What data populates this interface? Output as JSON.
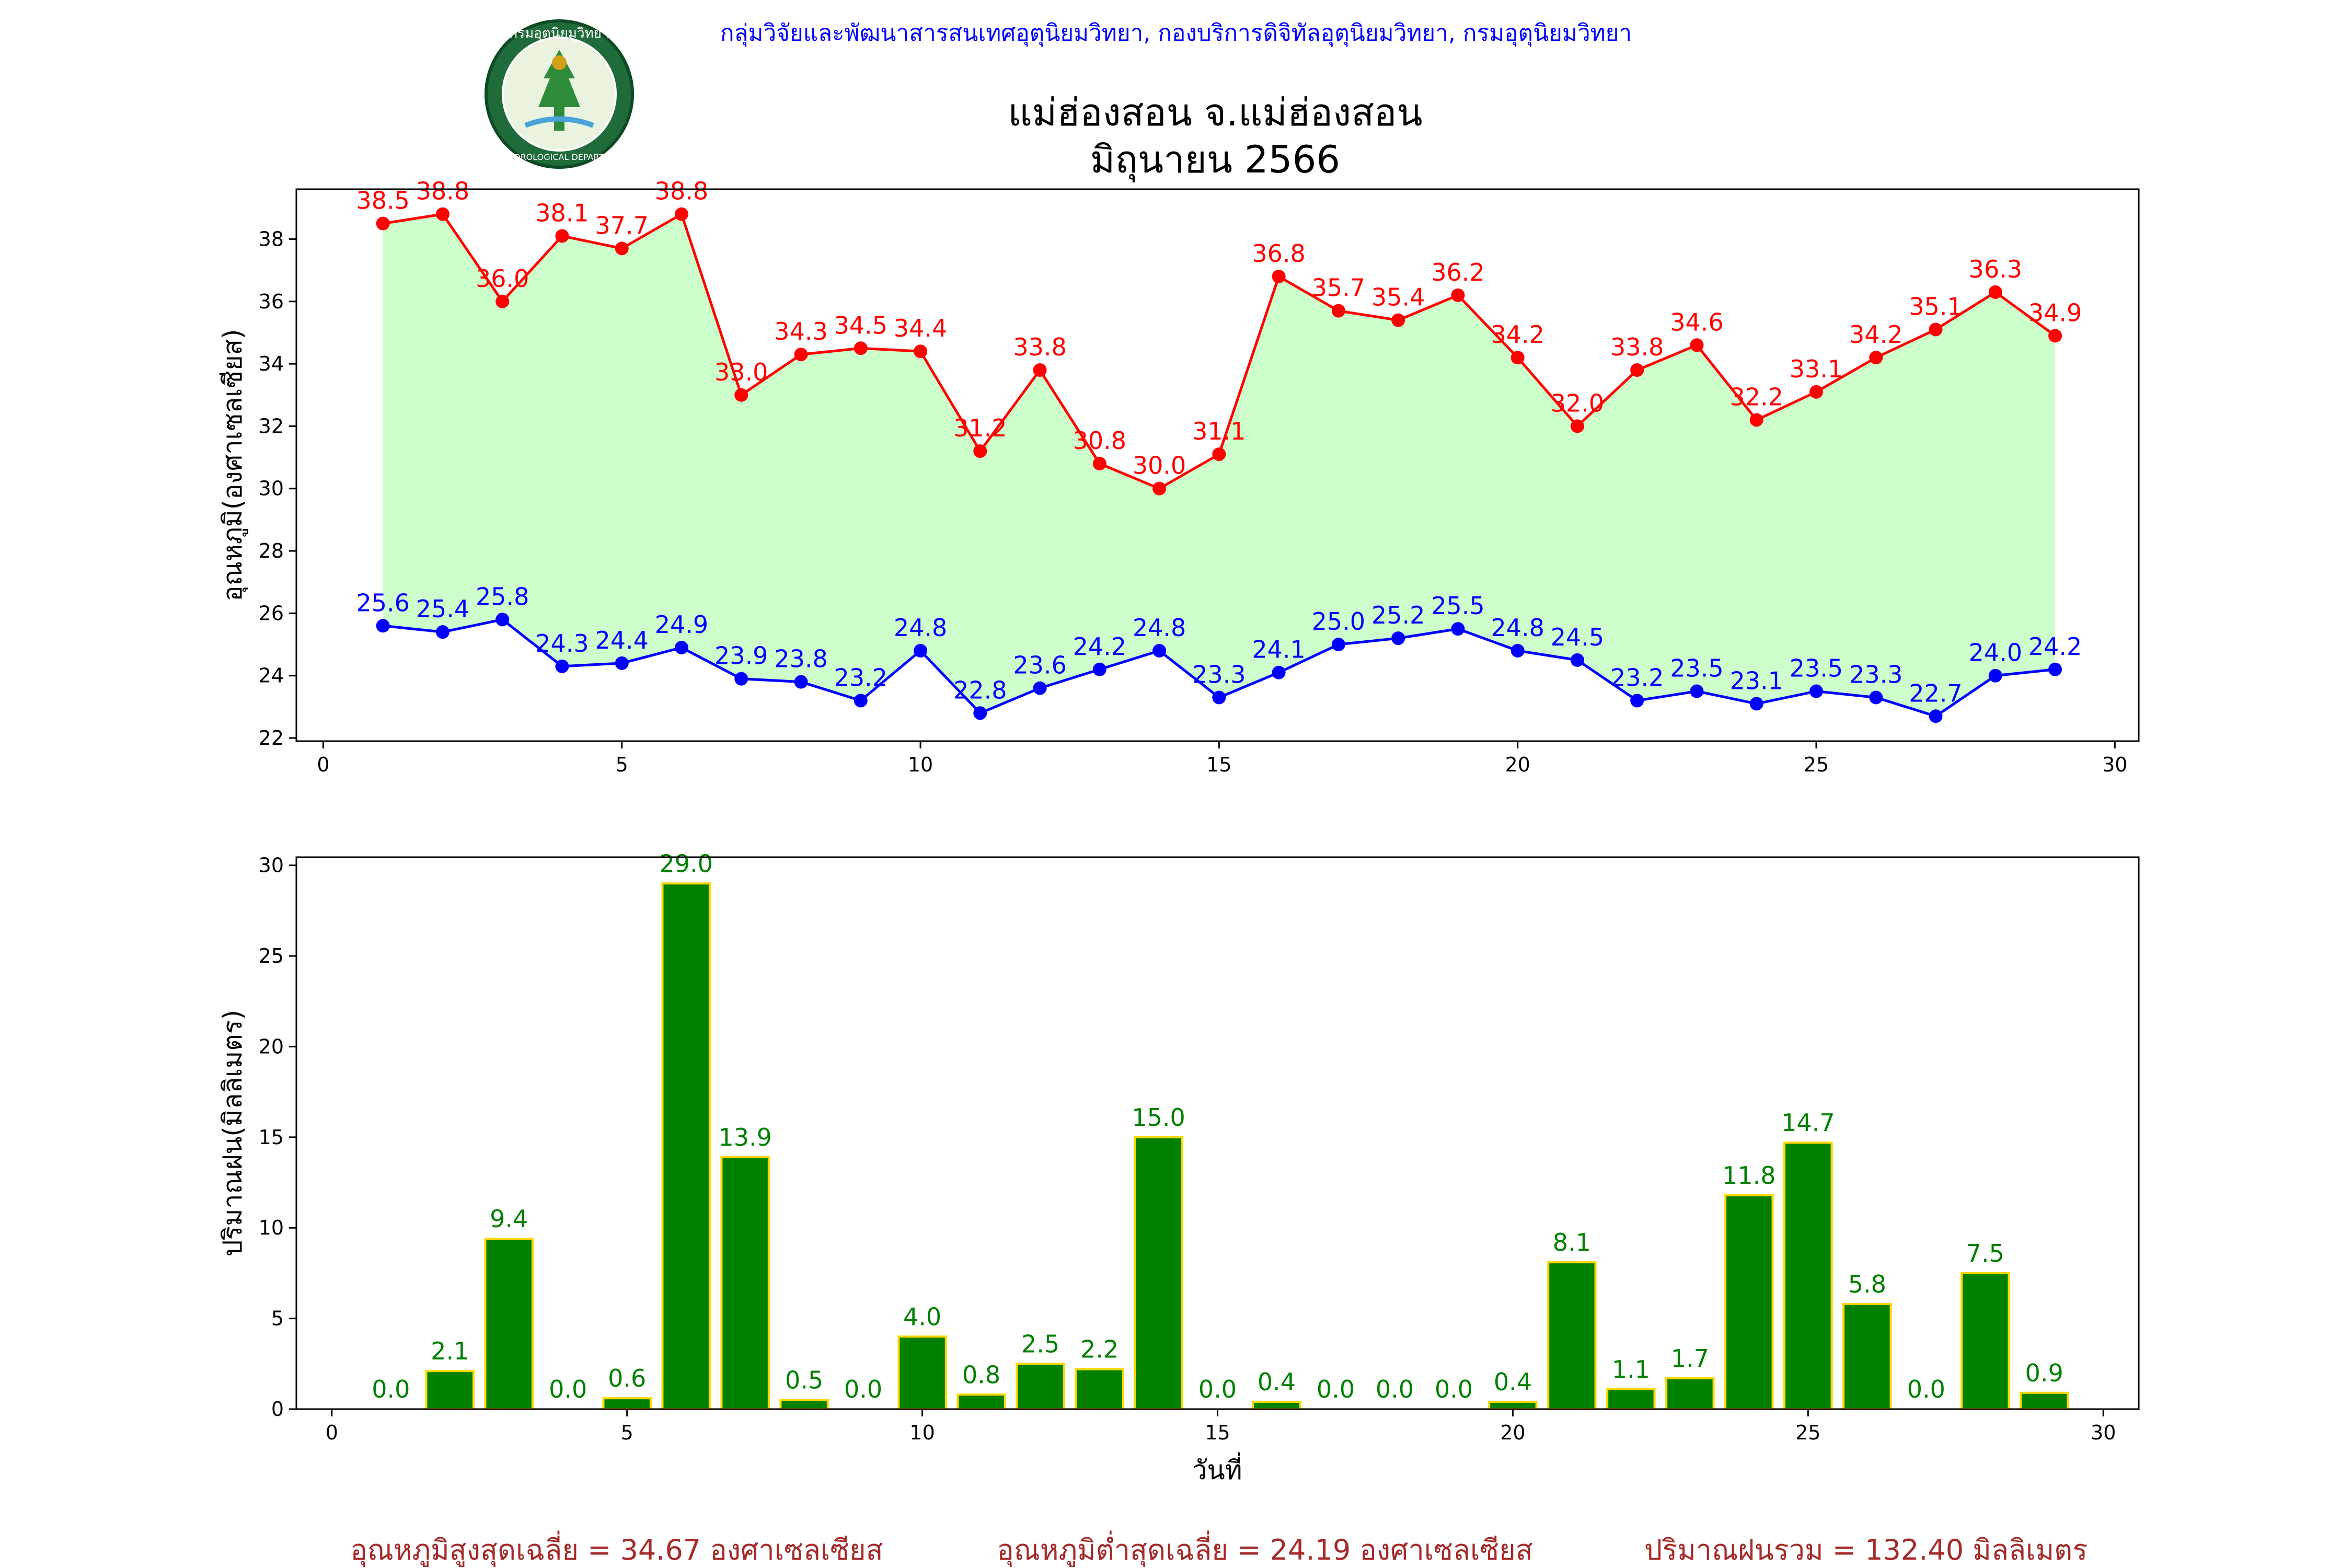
{
  "header": {
    "agency": "กลุ่มวิจัยและพัฒนาสารสนเทศอุตุนิยมวิทยา, กองบริการดิจิทัลอุตุนิยมวิทยา, กรมอุตุนิยมวิทยา",
    "logo_text_top": "กรมอุตุนิยมวิทยา",
    "logo_text_bottom": "METEOROLOGICAL DEPARTMENT"
  },
  "title": {
    "line1": "แม่ฮ่องสอน จ.แม่ฮ่องสอน",
    "line2": "มิถุนายน 2566"
  },
  "colors": {
    "max_line": "#ff0000",
    "min_line": "#0000ff",
    "fill_between": "#ccffcc",
    "bar_fill": "#008000",
    "bar_edge": "#ffd700",
    "summary_text": "#a52a2a"
  },
  "chart_data": [
    {
      "type": "line",
      "ylabel": "อุณหภูมิ(องศาเซลเซียส)",
      "xlabel": "",
      "xlim": [
        -0.45,
        30.4
      ],
      "ylim": [
        21.9,
        39.6
      ],
      "xticks": [
        0,
        5,
        10,
        15,
        20,
        25,
        30
      ],
      "yticks": [
        22,
        24,
        26,
        28,
        30,
        32,
        34,
        36,
        38
      ],
      "fill_between_series": true,
      "x": [
        1,
        2,
        3,
        4,
        5,
        6,
        7,
        8,
        9,
        10,
        11,
        12,
        13,
        14,
        15,
        16,
        17,
        18,
        19,
        20,
        21,
        22,
        23,
        24,
        25,
        26,
        27,
        28,
        29
      ],
      "series": [
        {
          "key": "max",
          "values": [
            38.5,
            38.8,
            36.0,
            38.1,
            37.7,
            38.8,
            33.0,
            34.3,
            34.5,
            34.4,
            31.2,
            33.8,
            30.8,
            30.0,
            31.1,
            36.8,
            35.7,
            35.4,
            36.2,
            34.2,
            32.0,
            33.8,
            34.6,
            32.2,
            33.1,
            34.2,
            35.1,
            36.3,
            34.9
          ]
        },
        {
          "key": "min",
          "values": [
            25.6,
            25.4,
            25.8,
            24.3,
            24.4,
            24.9,
            23.9,
            23.8,
            23.2,
            24.8,
            22.8,
            23.6,
            24.2,
            24.8,
            23.3,
            24.1,
            25.0,
            25.2,
            25.5,
            24.8,
            24.5,
            23.2,
            23.5,
            23.1,
            23.5,
            23.3,
            22.7,
            24.0,
            24.2
          ]
        }
      ]
    },
    {
      "type": "bar",
      "ylabel": "ปริมาณฝน(มิลลิเมตร)",
      "xlabel": "วันที่",
      "xlim": [
        -0.6,
        30.6
      ],
      "ylim": [
        0,
        30.45
      ],
      "xticks": [
        0,
        5,
        10,
        15,
        20,
        25,
        30
      ],
      "yticks": [
        0,
        5,
        10,
        15,
        20,
        25,
        30
      ],
      "x": [
        1,
        2,
        3,
        4,
        5,
        6,
        7,
        8,
        9,
        10,
        11,
        12,
        13,
        14,
        15,
        16,
        17,
        18,
        19,
        20,
        21,
        22,
        23,
        24,
        25,
        26,
        27,
        28,
        29
      ],
      "values": [
        0.0,
        2.1,
        9.4,
        0.0,
        0.6,
        29.0,
        13.9,
        0.5,
        0.0,
        4.0,
        0.8,
        2.5,
        2.2,
        15.0,
        0.0,
        0.4,
        0.0,
        0.0,
        0.0,
        0.4,
        8.1,
        1.1,
        1.7,
        11.8,
        14.7,
        5.8,
        0.0,
        7.5,
        0.9
      ]
    }
  ],
  "summary": {
    "avg_max": "อุณหภูมิสูงสุดเฉลี่ย = 34.67 องศาเซลเซียส",
    "avg_min": "อุณหภูมิต่ำสุดเฉลี่ย = 24.19 องศาเซลเซียส",
    "total_rain": "ปริมาณฝนรวม = 132.40 มิลลิเมตร"
  }
}
